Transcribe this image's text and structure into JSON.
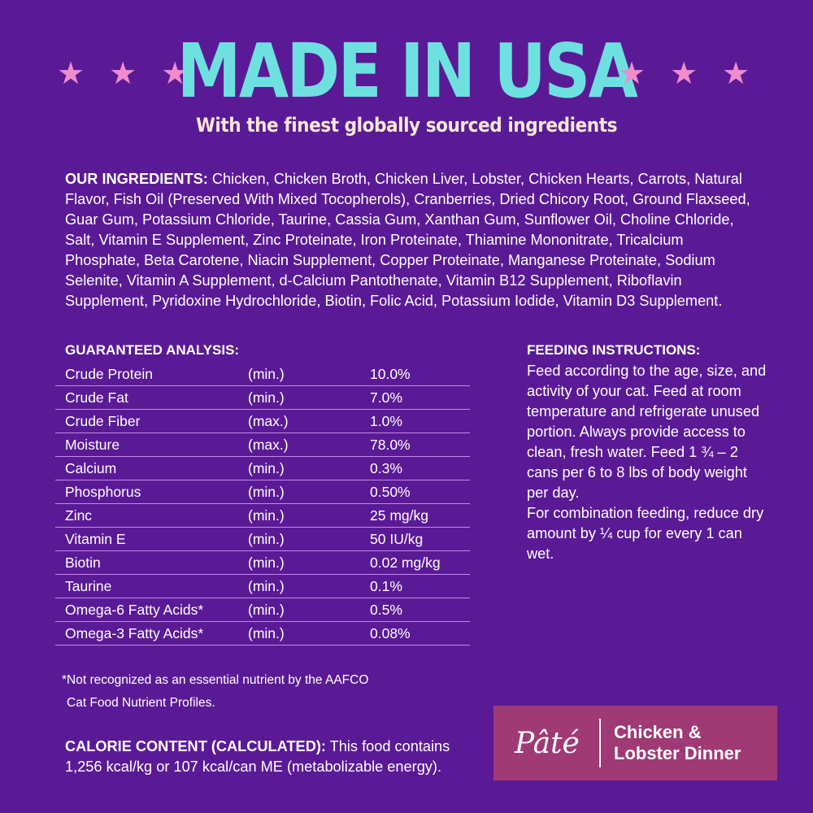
{
  "header": {
    "title": "MADE IN USA",
    "subtitle": "With the finest globally sourced ingredients",
    "stars_per_side": 3,
    "star_color": "#f08ccc",
    "title_color": "#6fe0e0"
  },
  "ingredients": {
    "label": "OUR INGREDIENTS:",
    "text": " Chicken, Chicken Broth, Chicken Liver, Lobster, Chicken Hearts, Carrots, Natural Flavor, Fish Oil (Preserved With Mixed Tocopherols), Cranberries, Dried Chicory Root, Ground Flaxseed, Guar Gum, Potassium Chloride, Taurine, Cassia Gum, Xanthan Gum, Sunflower Oil, Choline Chloride,  Salt, Vitamin E Supplement, Zinc Proteinate, Iron Proteinate, Thiamine Mononitrate, Tricalcium Phosphate, Beta Carotene, Niacin Supplement,  Copper Proteinate, Manganese Proteinate, Sodium Selenite, Vitamin A Supplement, d-Calcium Pantothenate, Vitamin B12 Supplement, Riboflavin Supplement, Pyridoxine Hydrochloride, Biotin, Folic Acid, Potassium Iodide, Vitamin D3 Supplement."
  },
  "analysis": {
    "title": "GUARANTEED ANALYSIS:",
    "rows": [
      {
        "name": "Crude Protein",
        "qualifier": "(min.)",
        "value": "10.0%"
      },
      {
        "name": "Crude Fat",
        "qualifier": "(min.)",
        "value": "7.0%"
      },
      {
        "name": "Crude Fiber",
        "qualifier": "(max.)",
        "value": "1.0%"
      },
      {
        "name": "Moisture",
        "qualifier": "(max.)",
        "value": "78.0%"
      },
      {
        "name": "Calcium",
        "qualifier": "(min.)",
        "value": "0.3%"
      },
      {
        "name": "Phosphorus",
        "qualifier": "(min.)",
        "value": "0.50%"
      },
      {
        "name": "Zinc",
        "qualifier": "(min.)",
        "value": "25 mg/kg"
      },
      {
        "name": "Vitamin E",
        "qualifier": "(min.)",
        "value": "50 IU/kg"
      },
      {
        "name": "Biotin",
        "qualifier": "(min.)",
        "value": "0.02 mg/kg"
      },
      {
        "name": "Taurine",
        "qualifier": "(min.)",
        "value": "0.1%"
      },
      {
        "name": "Omega-6 Fatty Acids*",
        "qualifier": "(min.)",
        "value": "0.5%"
      },
      {
        "name": "Omega-3 Fatty Acids*",
        "qualifier": "(min.)",
        "value": "0.08%"
      }
    ]
  },
  "feeding": {
    "title": "FEEDING INSTRUCTIONS:",
    "text1": "Feed according to the age, size, and activity of your cat. Feed at room temperature and refrigerate unused portion. Always provide access to clean, fresh water. Feed 1 ¾ – 2 cans per 6 to 8 lbs of body weight per day.",
    "text2": "For combination feeding, reduce dry amount by ¼ cup for every 1 can wet."
  },
  "footnote": {
    "line1": "*Not recognized as an essential nutrient by the AAFCO",
    "line2": "Cat Food Nutrient Profiles."
  },
  "calorie": {
    "label": "CALORIE CONTENT (CALCULATED):",
    "text": " This food contains 1,256 kcal/kg or 107 kcal/can ME (metabolizable energy)."
  },
  "badge": {
    "style": "Pâté",
    "name_line1": "Chicken &",
    "name_line2": "Lobster Dinner",
    "color": "#9f3a75"
  },
  "colors": {
    "background": "#5a1a96",
    "text": "#ffffff",
    "subtitle": "#fde8d8"
  }
}
